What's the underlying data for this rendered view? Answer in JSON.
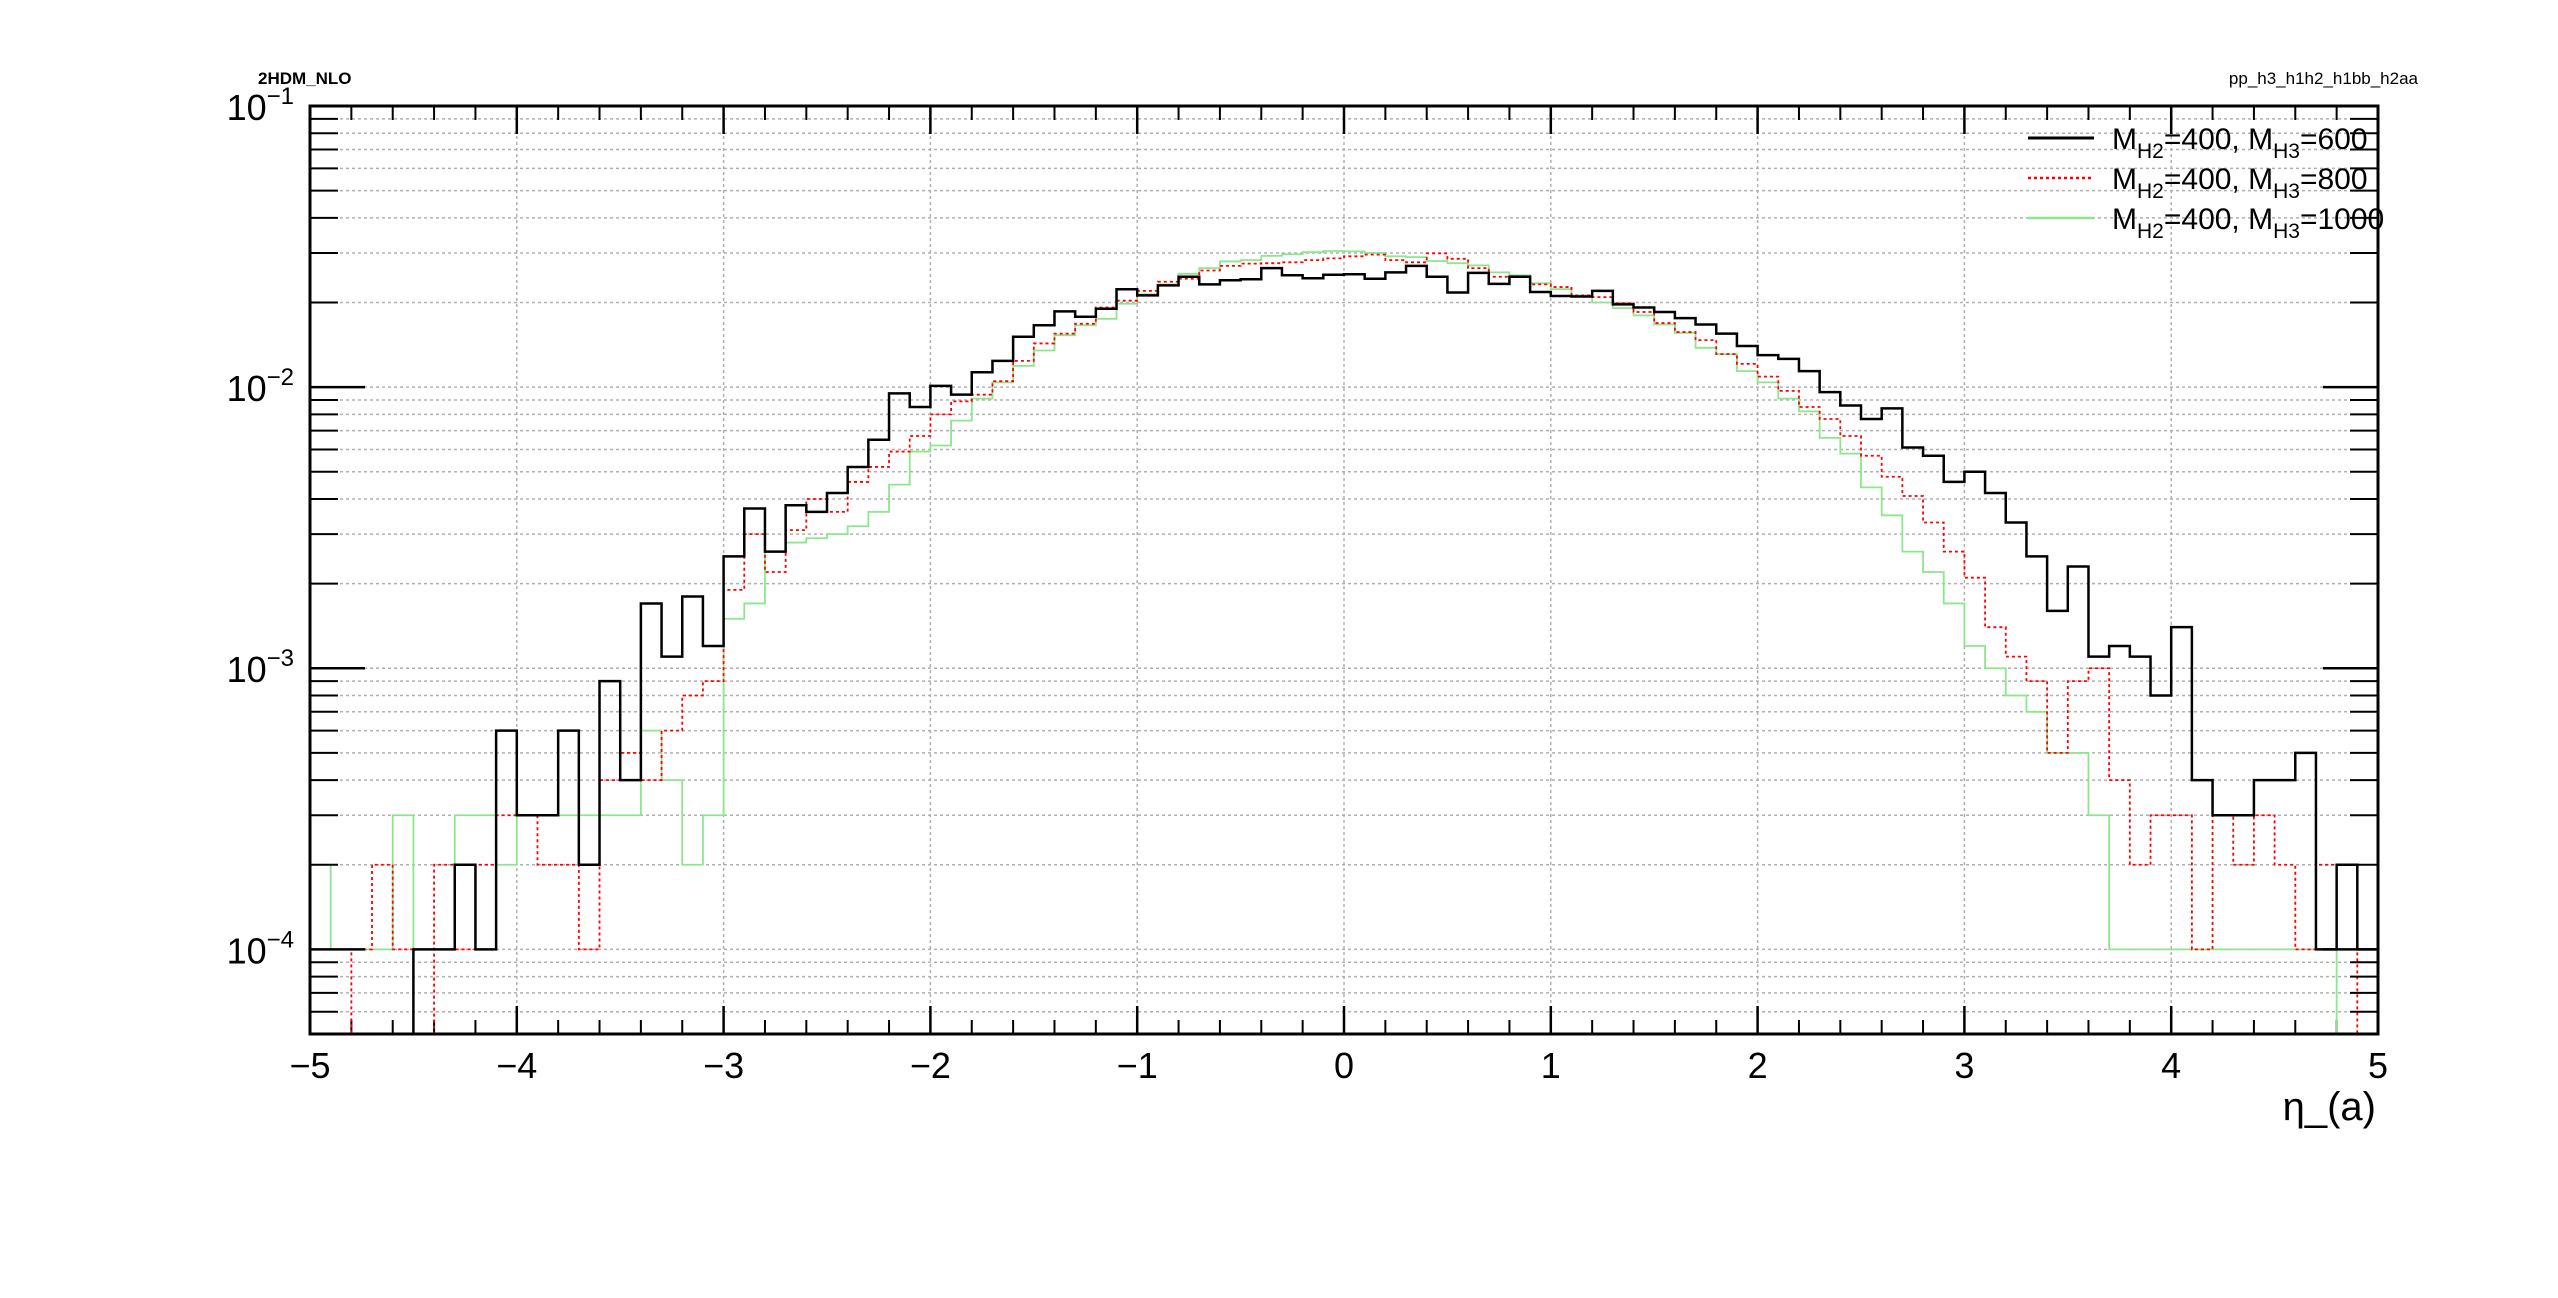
{
  "header": {
    "left_label": "2HDM_NLO",
    "right_label": "pp_h3_h1h2_h1bb_h2aa"
  },
  "chart_data": {
    "type": "histogram",
    "xlabel": "η_(a)",
    "ylabel": "",
    "xlim": [
      -5,
      5
    ],
    "ylim": [
      5e-05,
      0.1
    ],
    "yscale": "log",
    "grid": true,
    "legend_position": "top-right",
    "x_ticks": [
      "−5",
      "−4",
      "−3",
      "−2",
      "−1",
      "0",
      "1",
      "2",
      "3",
      "4",
      "5"
    ],
    "y_ticks": [
      {
        "base": "10",
        "exp": "−1",
        "value": 0.1
      },
      {
        "base": "10",
        "exp": "−2",
        "value": 0.01
      },
      {
        "base": "10",
        "exp": "−3",
        "value": 0.001
      },
      {
        "base": "10",
        "exp": "−4",
        "value": 0.0001
      }
    ],
    "bin_edges": {
      "start": -5,
      "stop": 5,
      "count": 100
    },
    "series": [
      {
        "legend": {
          "m": "M",
          "s1": "H2",
          "v1": "=400, ",
          "m2": "M",
          "s2": "H3",
          "v2": "=600"
        },
        "color": "#000000",
        "style": "solid",
        "values": [
          0,
          0,
          0,
          0,
          0,
          0.0001,
          0.0001,
          0.0002,
          0.0001,
          0.0006,
          0.0003,
          0.0003,
          0.0006,
          0.0002,
          0.0009,
          0.0004,
          0.0017,
          0.0011,
          0.0018,
          0.0012,
          0.0025,
          0.0037,
          0.0026,
          0.0038,
          0.0036,
          0.0042,
          0.0052,
          0.0065,
          0.0095,
          0.0085,
          0.0101,
          0.0094,
          0.0113,
          0.0124,
          0.0151,
          0.0166,
          0.0186,
          0.0178,
          0.019,
          0.0223,
          0.0212,
          0.023,
          0.0247,
          0.0232,
          0.024,
          0.0242,
          0.0265,
          0.025,
          0.0244,
          0.0251,
          0.0252,
          0.0243,
          0.0256,
          0.027,
          0.0247,
          0.0217,
          0.0255,
          0.0233,
          0.0247,
          0.0218,
          0.0211,
          0.021,
          0.022,
          0.0197,
          0.0192,
          0.0185,
          0.0176,
          0.0167,
          0.0155,
          0.014,
          0.013,
          0.0126,
          0.0114,
          0.0096,
          0.0086,
          0.0077,
          0.0084,
          0.0061,
          0.0057,
          0.0046,
          0.005,
          0.0042,
          0.0033,
          0.0025,
          0.0016,
          0.0023,
          0.0011,
          0.0012,
          0.0011,
          0.0008,
          0.0014,
          0.0004,
          0.0003,
          0.0003,
          0.0004,
          0.0004,
          0.0005,
          0.0001,
          0.0002,
          0.0001
        ]
      },
      {
        "legend": {
          "m": "M",
          "s1": "H2",
          "v1": "=400, ",
          "m2": "M",
          "s2": "H3",
          "v2": "=800"
        },
        "color": "#ff0000",
        "style": "dotted",
        "values": [
          0,
          0,
          0.0001,
          0.0002,
          0.0001,
          0,
          0.0002,
          0.0001,
          0.0002,
          0.0003,
          0.0003,
          0.0002,
          0.0002,
          0.0001,
          0.0004,
          0.0005,
          0.0004,
          0.0006,
          0.0008,
          0.0009,
          0.0019,
          0.003,
          0.0022,
          0.0031,
          0.004,
          0.0036,
          0.0046,
          0.0052,
          0.0059,
          0.0067,
          0.008,
          0.0089,
          0.0094,
          0.0105,
          0.0124,
          0.0143,
          0.0155,
          0.0168,
          0.0192,
          0.0203,
          0.022,
          0.0237,
          0.0243,
          0.026,
          0.027,
          0.0275,
          0.0276,
          0.0278,
          0.0283,
          0.0287,
          0.0292,
          0.0296,
          0.0283,
          0.0278,
          0.0299,
          0.0286,
          0.0265,
          0.0247,
          0.0248,
          0.0232,
          0.0227,
          0.0212,
          0.0209,
          0.0199,
          0.0185,
          0.0169,
          0.0157,
          0.0147,
          0.0131,
          0.0121,
          0.0109,
          0.0097,
          0.0085,
          0.0077,
          0.0067,
          0.0057,
          0.0048,
          0.0041,
          0.0033,
          0.0026,
          0.0021,
          0.0014,
          0.0011,
          0.0009,
          0.0005,
          0.0009,
          0.001,
          0.0004,
          0.0002,
          0.0003,
          0.0003,
          0.0001,
          0.0003,
          0.0002,
          0.0003,
          0.0002,
          0.0001,
          0.0002,
          0.0001,
          0
        ]
      },
      {
        "legend": {
          "m": "M",
          "s1": "H2",
          "v1": "=400, ",
          "m2": "M",
          "s2": "H3",
          "v2": "=1000"
        },
        "color": "#8ce68c",
        "style": "solid",
        "values": [
          0.0002,
          0.0001,
          0.0001,
          0.0001,
          0.0003,
          0.0001,
          0.0001,
          0.0003,
          0.0003,
          0.0002,
          0.0003,
          0.0003,
          0.0003,
          0.0003,
          0.0003,
          0.0003,
          0.0006,
          0.0004,
          0.0002,
          0.0003,
          0.0015,
          0.0017,
          0.0026,
          0.0028,
          0.0029,
          0.003,
          0.0032,
          0.0036,
          0.0045,
          0.0059,
          0.0062,
          0.0076,
          0.0091,
          0.0104,
          0.0119,
          0.0135,
          0.0153,
          0.0166,
          0.0175,
          0.0198,
          0.0214,
          0.0232,
          0.0253,
          0.0265,
          0.028,
          0.0283,
          0.0293,
          0.0297,
          0.0302,
          0.0305,
          0.0304,
          0.03,
          0.0292,
          0.029,
          0.0281,
          0.0276,
          0.0271,
          0.0256,
          0.025,
          0.0234,
          0.0223,
          0.0212,
          0.02,
          0.0191,
          0.018,
          0.0167,
          0.0156,
          0.0138,
          0.0131,
          0.0114,
          0.0104,
          0.0091,
          0.0082,
          0.0066,
          0.0058,
          0.0044,
          0.0035,
          0.0026,
          0.0022,
          0.0017,
          0.0012,
          0.001,
          0.0008,
          0.0007,
          0.0005,
          0.0005,
          0.0003,
          0.0001,
          0.0001,
          0.0001,
          0.0001,
          0.0001,
          0.0001,
          0.0001,
          0.0001,
          0.0001,
          0.0001,
          0.0001,
          0,
          0
        ]
      }
    ]
  }
}
